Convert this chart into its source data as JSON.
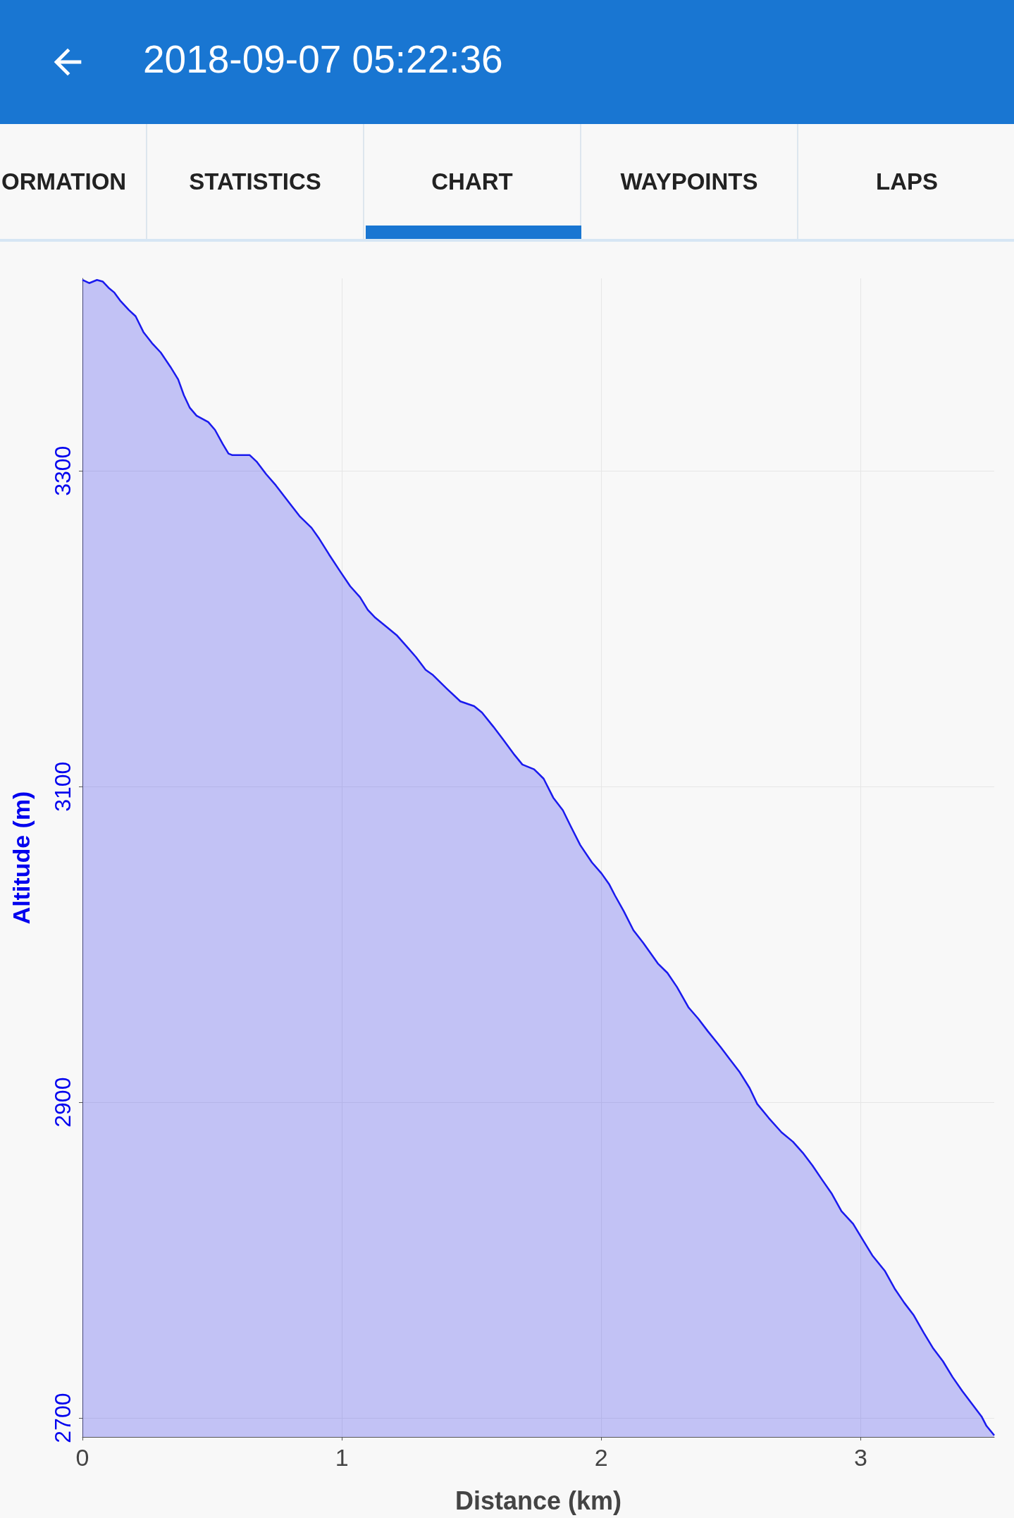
{
  "chart_data": {
    "type": "area",
    "title": "2018-09-07 05:22:36",
    "annotations": [
      "ORMATION",
      "STATISTICS",
      "CHART",
      "WAYPOINTS",
      "LAPS"
    ],
    "xlabel": "Distance (km)",
    "ylabel": "Altitude (m)",
    "xlim": [
      0,
      3.515
    ],
    "ylim": [
      2688,
      3422
    ],
    "xticks": [
      0,
      1,
      2,
      3
    ],
    "yticks": [
      2700,
      2900,
      3100,
      3300
    ],
    "grid": true,
    "marker": "none",
    "line_style": "solid",
    "series": [
      {
        "color": "#1a1aee",
        "x": [
          0,
          0.026,
          0.056,
          0.078,
          0.101,
          0.123,
          0.145,
          0.179,
          0.205,
          0.235,
          0.268,
          0.302,
          0.339,
          0.369,
          0.391,
          0.414,
          0.44,
          0.485,
          0.511,
          0.541,
          0.563,
          0.578,
          0.645,
          0.671,
          0.708,
          0.745,
          0.801,
          0.839,
          0.883,
          0.913,
          0.951,
          0.995,
          1.032,
          1.07,
          1.1,
          1.129,
          1.174,
          1.211,
          1.249,
          1.286,
          1.323,
          1.349,
          1.405,
          1.457,
          1.51,
          1.54,
          1.584,
          1.621,
          1.666,
          1.696,
          1.741,
          1.778,
          1.815,
          1.852,
          1.882,
          1.919,
          1.964,
          2.001,
          2.031,
          2.053,
          2.087,
          2.124,
          2.162,
          2.218,
          2.255,
          2.292,
          2.337,
          2.374,
          2.411,
          2.46,
          2.497,
          2.534,
          2.572,
          2.601,
          2.646,
          2.695,
          2.739,
          2.777,
          2.814,
          2.851,
          2.889,
          2.926,
          2.971,
          3.008,
          3.045,
          3.094,
          3.131,
          3.168,
          3.205,
          3.243,
          3.28,
          3.317,
          3.354,
          3.392,
          3.429,
          3.466,
          3.485,
          3.515
        ],
        "values": [
          3421,
          3419,
          3421,
          3420,
          3416,
          3413,
          3408,
          3402,
          3398,
          3388,
          3381,
          3375,
          3366,
          3358,
          3348,
          3340,
          3335,
          3331,
          3326,
          3317,
          3311,
          3310,
          3310,
          3306,
          3298,
          3291,
          3279,
          3271,
          3264,
          3257,
          3247,
          3236,
          3227,
          3220,
          3212,
          3207,
          3201,
          3196,
          3189,
          3182,
          3174,
          3171,
          3162,
          3154,
          3151,
          3147,
          3138,
          3130,
          3120,
          3114,
          3111,
          3105,
          3093,
          3085,
          3075,
          3063,
          3052,
          3045,
          3038,
          3031,
          3021,
          3009,
          3001,
          2988,
          2982,
          2973,
          2960,
          2953,
          2945,
          2935,
          2927,
          2919,
          2909,
          2899,
          2890,
          2881,
          2875,
          2868,
          2860,
          2851,
          2842,
          2831,
          2823,
          2813,
          2803,
          2793,
          2782,
          2773,
          2765,
          2754,
          2744,
          2736,
          2726,
          2717,
          2709,
          2701,
          2695,
          2689
        ]
      }
    ]
  }
}
